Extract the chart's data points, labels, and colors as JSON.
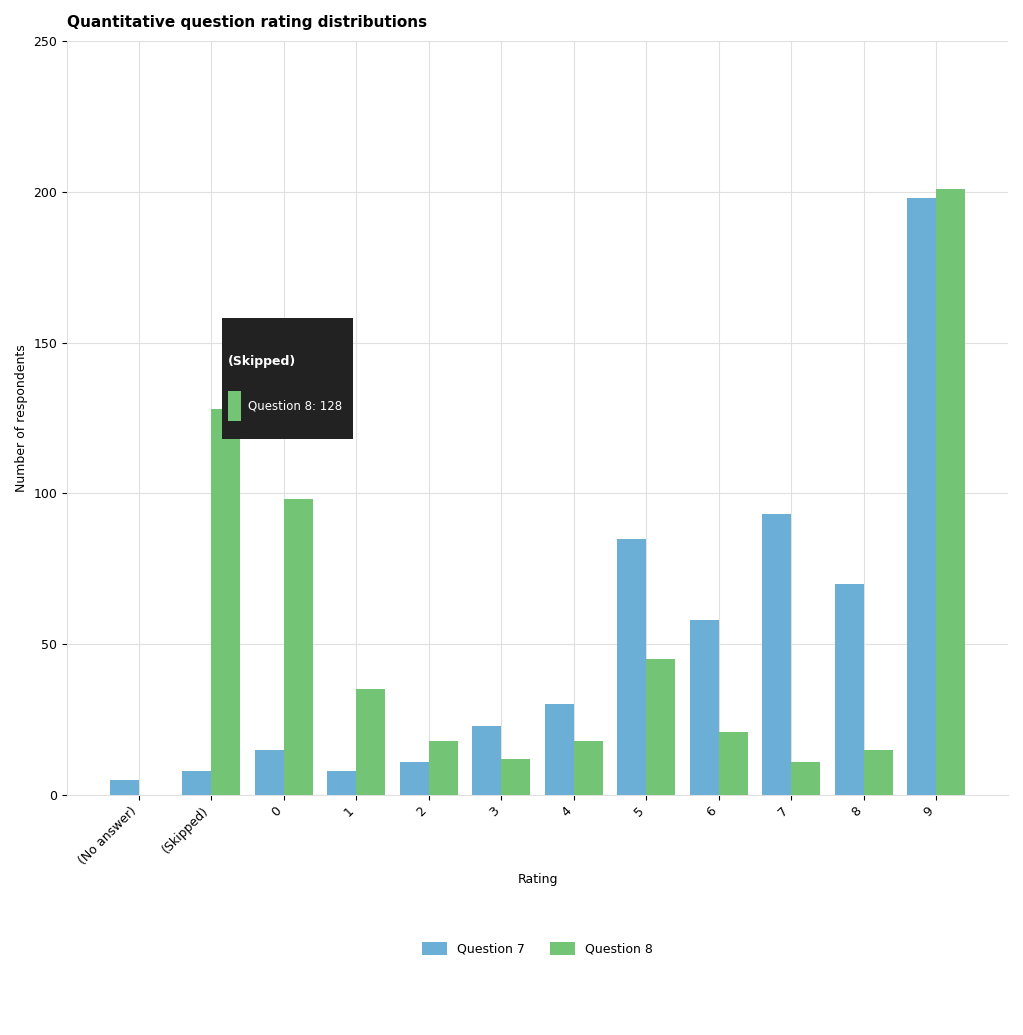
{
  "categories": [
    "(No answer)",
    "(Skipped)",
    "0",
    "1",
    "2",
    "3",
    "4",
    "5",
    "6",
    "7",
    "8",
    "9"
  ],
  "q7_values": [
    5,
    8,
    15,
    8,
    11,
    23,
    30,
    85,
    58,
    93,
    70,
    198
  ],
  "q8_values": [
    0,
    128,
    98,
    35,
    18,
    12,
    18,
    45,
    21,
    11,
    15,
    201
  ],
  "q7_color": "#6baed6",
  "q8_color": "#74c476",
  "title": "Quantitative question rating distributions",
  "ylabel": "Number of respondents",
  "xlabel": "Rating",
  "ylim": [
    0,
    250
  ],
  "yticks": [
    0,
    50,
    100,
    150,
    200,
    250
  ],
  "legend_labels": [
    "Question 7",
    "Question 8"
  ],
  "tooltip_title": "(Skipped)",
  "tooltip_label": "Question 8: 128",
  "bg_color": "#ffffff",
  "grid_color": "#e0e0e0",
  "bar_width": 0.4,
  "title_bold": true,
  "title_fontsize": 11,
  "axis_fontsize": 9,
  "tick_fontsize": 9
}
